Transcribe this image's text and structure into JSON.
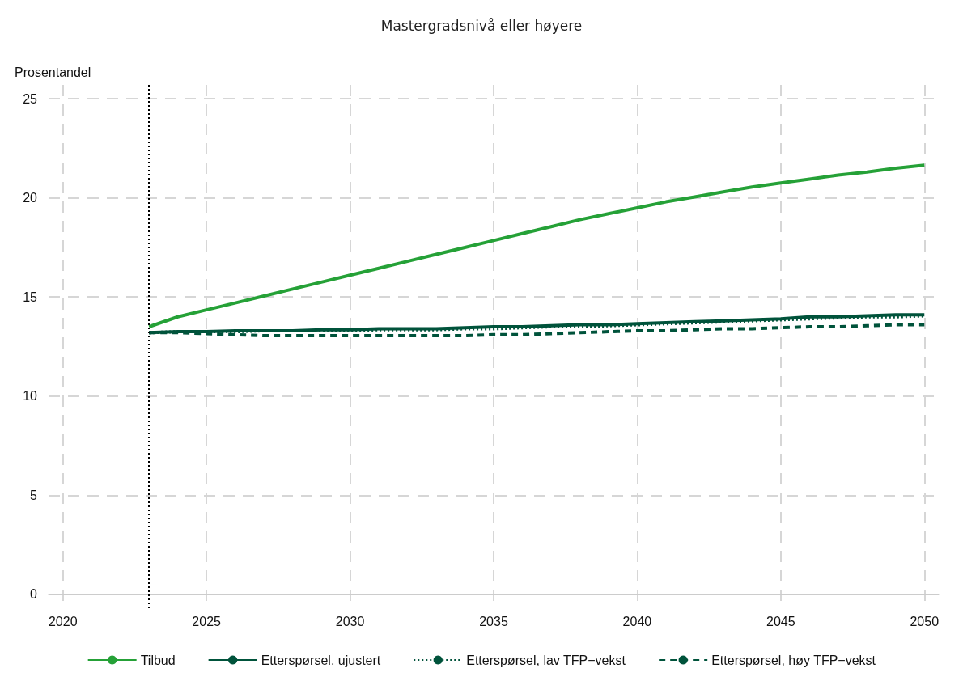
{
  "chart_data": {
    "type": "line",
    "title": "Mastergradsnivå eller høyere",
    "ylabel": "Prosentandel",
    "x": [
      2023,
      2024,
      2025,
      2026,
      2027,
      2028,
      2029,
      2030,
      2031,
      2032,
      2033,
      2034,
      2035,
      2036,
      2037,
      2038,
      2039,
      2040,
      2041,
      2042,
      2043,
      2044,
      2045,
      2046,
      2047,
      2048,
      2049,
      2050
    ],
    "series": [
      {
        "name": "Tilbud",
        "color": "#25a137",
        "line_style": "solid",
        "values": [
          13.5,
          14.0,
          14.35,
          14.7,
          15.05,
          15.4,
          15.75,
          16.1,
          16.45,
          16.8,
          17.15,
          17.5,
          17.85,
          18.2,
          18.55,
          18.9,
          19.2,
          19.5,
          19.8,
          20.05,
          20.3,
          20.55,
          20.75,
          20.95,
          21.15,
          21.3,
          21.5,
          21.65
        ]
      },
      {
        "name": "Etterspørsel, ujustert",
        "color": "#00533b",
        "line_style": "solid",
        "values": [
          13.2,
          13.25,
          13.25,
          13.3,
          13.3,
          13.3,
          13.35,
          13.35,
          13.4,
          13.4,
          13.4,
          13.45,
          13.5,
          13.5,
          13.55,
          13.6,
          13.6,
          13.65,
          13.7,
          13.75,
          13.8,
          13.85,
          13.9,
          14.0,
          14.0,
          14.05,
          14.1,
          14.1
        ]
      },
      {
        "name": "Etterspørsel, lav TFP−vekst",
        "color": "#00533b",
        "line_style": "dotted",
        "values": [
          13.2,
          13.25,
          13.25,
          13.25,
          13.3,
          13.3,
          13.3,
          13.3,
          13.35,
          13.35,
          13.35,
          13.4,
          13.4,
          13.45,
          13.5,
          13.5,
          13.55,
          13.6,
          13.65,
          13.7,
          13.75,
          13.8,
          13.85,
          13.9,
          13.95,
          14.0,
          14.0,
          14.05
        ]
      },
      {
        "name": "Etterspørsel, høy TFP−vekst",
        "color": "#00533b",
        "line_style": "dashed",
        "values": [
          13.2,
          13.2,
          13.15,
          13.1,
          13.05,
          13.05,
          13.05,
          13.05,
          13.05,
          13.05,
          13.05,
          13.05,
          13.1,
          13.1,
          13.15,
          13.2,
          13.25,
          13.3,
          13.3,
          13.35,
          13.4,
          13.4,
          13.45,
          13.5,
          13.5,
          13.55,
          13.6,
          13.6
        ]
      }
    ],
    "xlim": [
      2019.5,
      2050.5
    ],
    "xticks": [
      2020,
      2025,
      2030,
      2035,
      2040,
      2045,
      2050
    ],
    "ylim": [
      -0.7,
      25.7
    ],
    "yticks": [
      0,
      5,
      10,
      15,
      20,
      25
    ],
    "ref_lines": [
      {
        "axis": "x",
        "value": 2023,
        "color": "#000000",
        "line_style": "dotted"
      }
    ],
    "grid": true,
    "legend": "bottom",
    "marker": "none"
  }
}
